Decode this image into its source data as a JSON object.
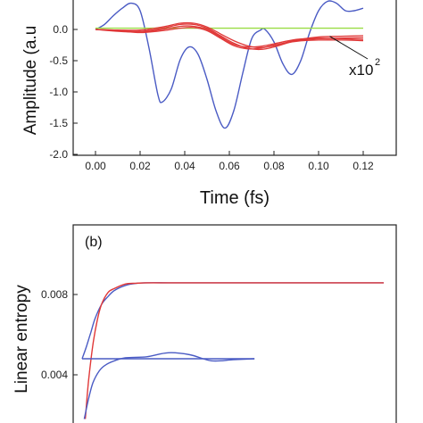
{
  "chart_data": [
    {
      "panel": "a",
      "type": "line",
      "title": "",
      "xlabel": "Time (fs)",
      "ylabel": "Amplitude (a.u",
      "xlim": [
        -0.02,
        0.13
      ],
      "ylim": [
        -2.0,
        0.35
      ],
      "xticks": [
        0.0,
        0.02,
        0.04,
        0.06,
        0.08,
        0.1,
        0.12
      ],
      "xtick_labels": [
        "0.00",
        "0.02",
        "0.04",
        "0.06",
        "0.08",
        "0.10",
        "0.12"
      ],
      "yticks": [
        -2.0,
        -1.5,
        -1.0,
        -0.5,
        0.0
      ],
      "ytick_labels": [
        "-2.0",
        "-1.5",
        "-1.0",
        "-0.5",
        "0.0"
      ],
      "annotation": {
        "text": "x10",
        "superscript": "2",
        "arrow_to": [
          0.105,
          -0.11
        ]
      },
      "grid": false,
      "series": [
        {
          "color": "#4a5bc4",
          "x": [
            0.0,
            0.004,
            0.008,
            0.012,
            0.016,
            0.02,
            0.024,
            0.028,
            0.03,
            0.034,
            0.038,
            0.042,
            0.046,
            0.05,
            0.054,
            0.058,
            0.062,
            0.066,
            0.07,
            0.074,
            0.076,
            0.08,
            0.084,
            0.088,
            0.092,
            0.096,
            0.1,
            0.104,
            0.108,
            0.112,
            0.116,
            0.12
          ],
          "y": [
            0.0,
            0.08,
            0.22,
            0.34,
            0.42,
            0.3,
            -0.3,
            -1.05,
            -1.16,
            -0.95,
            -0.48,
            -0.28,
            -0.4,
            -0.8,
            -1.3,
            -1.58,
            -1.3,
            -0.7,
            -0.15,
            -0.01,
            0.0,
            -0.2,
            -0.55,
            -0.72,
            -0.5,
            -0.05,
            0.3,
            0.45,
            0.42,
            0.3,
            0.3,
            0.34
          ]
        },
        {
          "color": "#99dd44",
          "x": [
            0.0,
            0.12
          ],
          "y": [
            0.02,
            0.02
          ]
        },
        {
          "color": "#e03838",
          "x": [
            0.0,
            0.01,
            0.02,
            0.03,
            0.038,
            0.044,
            0.05,
            0.056,
            0.062,
            0.068,
            0.074,
            0.08,
            0.09,
            0.1,
            0.11,
            0.12
          ],
          "y": [
            0.0,
            -0.02,
            -0.03,
            0.02,
            0.08,
            0.08,
            0.02,
            -0.1,
            -0.22,
            -0.3,
            -0.32,
            -0.28,
            -0.18,
            -0.15,
            -0.14,
            -0.13
          ]
        },
        {
          "color": "#e03838",
          "x": [
            0.0,
            0.01,
            0.02,
            0.03,
            0.038,
            0.044,
            0.05,
            0.056,
            0.062,
            0.068,
            0.074,
            0.08,
            0.09,
            0.1,
            0.11,
            0.12
          ],
          "y": [
            0.0,
            -0.03,
            -0.04,
            0.0,
            0.05,
            0.05,
            0.0,
            -0.12,
            -0.24,
            -0.28,
            -0.27,
            -0.23,
            -0.16,
            -0.14,
            -0.15,
            -0.16
          ]
        },
        {
          "color": "#e03838",
          "x": [
            0.0,
            0.01,
            0.02,
            0.03,
            0.038,
            0.044,
            0.05,
            0.056,
            0.062,
            0.068,
            0.074,
            0.08,
            0.09,
            0.1,
            0.11,
            0.12
          ],
          "y": [
            0.0,
            -0.02,
            -0.05,
            -0.02,
            0.02,
            0.03,
            -0.02,
            -0.14,
            -0.26,
            -0.31,
            -0.3,
            -0.25,
            -0.19,
            -0.17,
            -0.17,
            -0.18
          ]
        },
        {
          "color": "#e03838",
          "x": [
            0.0,
            0.01,
            0.02,
            0.03,
            0.038,
            0.044,
            0.05,
            0.056,
            0.062,
            0.068,
            0.074,
            0.08,
            0.09,
            0.1,
            0.11,
            0.12
          ],
          "y": [
            0.0,
            -0.01,
            -0.01,
            0.04,
            0.1,
            0.1,
            0.04,
            -0.07,
            -0.18,
            -0.26,
            -0.29,
            -0.26,
            -0.17,
            -0.12,
            -0.11,
            -0.1
          ]
        }
      ]
    },
    {
      "panel": "b",
      "type": "line",
      "panel_label": "(b)",
      "title": "",
      "xlabel": "",
      "ylabel": "Linear entropy",
      "xlim": [
        -0.02,
        0.3
      ],
      "ylim": [
        0.0018,
        0.0105
      ],
      "yticks": [
        0.004,
        0.008
      ],
      "ytick_labels": [
        "0.004",
        "0.008"
      ],
      "grid": false,
      "series": [
        {
          "color": "#4a5bc4",
          "x": [
            0.0,
            0.004,
            0.008,
            0.012,
            0.018,
            0.024,
            0.03,
            0.04,
            0.05,
            0.06,
            0.08,
            0.1,
            0.14,
            0.2,
            0.28
          ],
          "y": [
            0.0048,
            0.0054,
            0.0061,
            0.0068,
            0.0075,
            0.0079,
            0.0082,
            0.00845,
            0.00855,
            0.00858,
            0.00858,
            0.00858,
            0.00858,
            0.00858,
            0.00858
          ]
        },
        {
          "color": "#e03838",
          "x": [
            0.003,
            0.006,
            0.01,
            0.014,
            0.018,
            0.024,
            0.03,
            0.04,
            0.05,
            0.06,
            0.08,
            0.1,
            0.14,
            0.2,
            0.28
          ],
          "y": [
            0.0018,
            0.0037,
            0.0055,
            0.0067,
            0.0075,
            0.0081,
            0.0083,
            0.00852,
            0.00856,
            0.00858,
            0.00858,
            0.00858,
            0.00858,
            0.00858,
            0.00858
          ]
        },
        {
          "color": "#4a5bc4",
          "x": [
            0.0,
            0.16
          ],
          "y": [
            0.0048,
            0.0048
          ]
        },
        {
          "color": "#4a5bc4",
          "x": [
            0.002,
            0.006,
            0.01,
            0.016,
            0.022,
            0.03,
            0.04,
            0.06,
            0.08,
            0.1,
            0.12,
            0.14,
            0.16
          ],
          "y": [
            0.0018,
            0.0028,
            0.0036,
            0.0042,
            0.0045,
            0.0047,
            0.00485,
            0.0049,
            0.0051,
            0.005,
            0.0047,
            0.00475,
            0.0048
          ]
        }
      ]
    }
  ]
}
